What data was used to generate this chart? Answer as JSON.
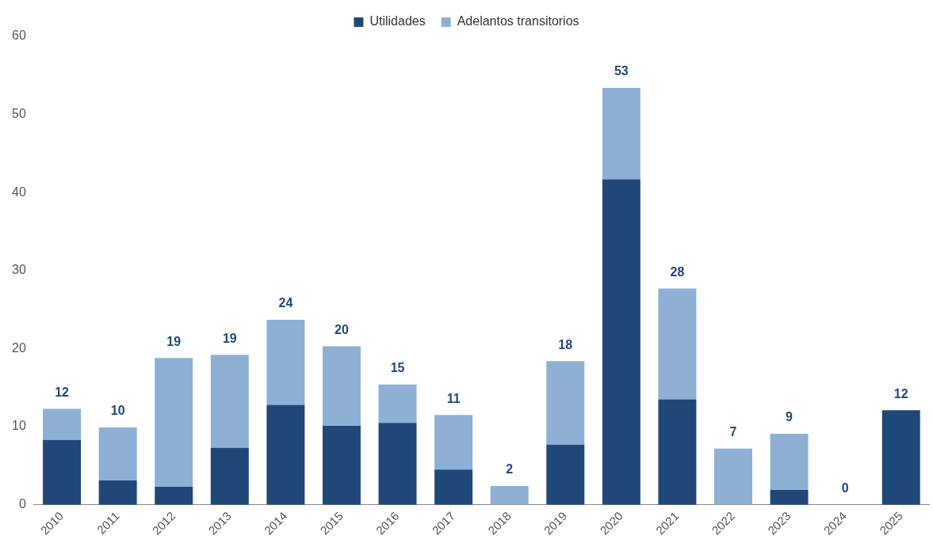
{
  "chart_data": {
    "type": "bar",
    "stacked": true,
    "categories": [
      "2010",
      "2011",
      "2012",
      "2013",
      "2014",
      "2015",
      "2016",
      "2017",
      "2018",
      "2019",
      "2020",
      "2021",
      "2022",
      "2023",
      "2024",
      "2025"
    ],
    "series": [
      {
        "name": "Utilidades",
        "color": "#1f4878",
        "values": [
          8.3,
          3.1,
          2.3,
          7.3,
          12.8,
          10.1,
          10.5,
          4.5,
          0,
          7.7,
          41.7,
          13.5,
          0,
          1.9,
          0,
          12.1
        ]
      },
      {
        "name": "Adelantos transitorios",
        "color": "#8eb0d5",
        "values": [
          4.0,
          6.8,
          16.5,
          11.9,
          10.9,
          10.2,
          4.9,
          7.0,
          2.4,
          10.7,
          11.7,
          14.2,
          7.2,
          7.2,
          0,
          0
        ]
      }
    ],
    "totals": [
      "12",
      "10",
      "19",
      "19",
      "24",
      "20",
      "15",
      "11",
      "2",
      "18",
      "53",
      "28",
      "7",
      "9",
      "0",
      "12"
    ],
    "ylim": [
      0,
      60
    ],
    "yticks": [
      0,
      10,
      20,
      30,
      40,
      50,
      60
    ],
    "grid": false,
    "legend": "top"
  }
}
